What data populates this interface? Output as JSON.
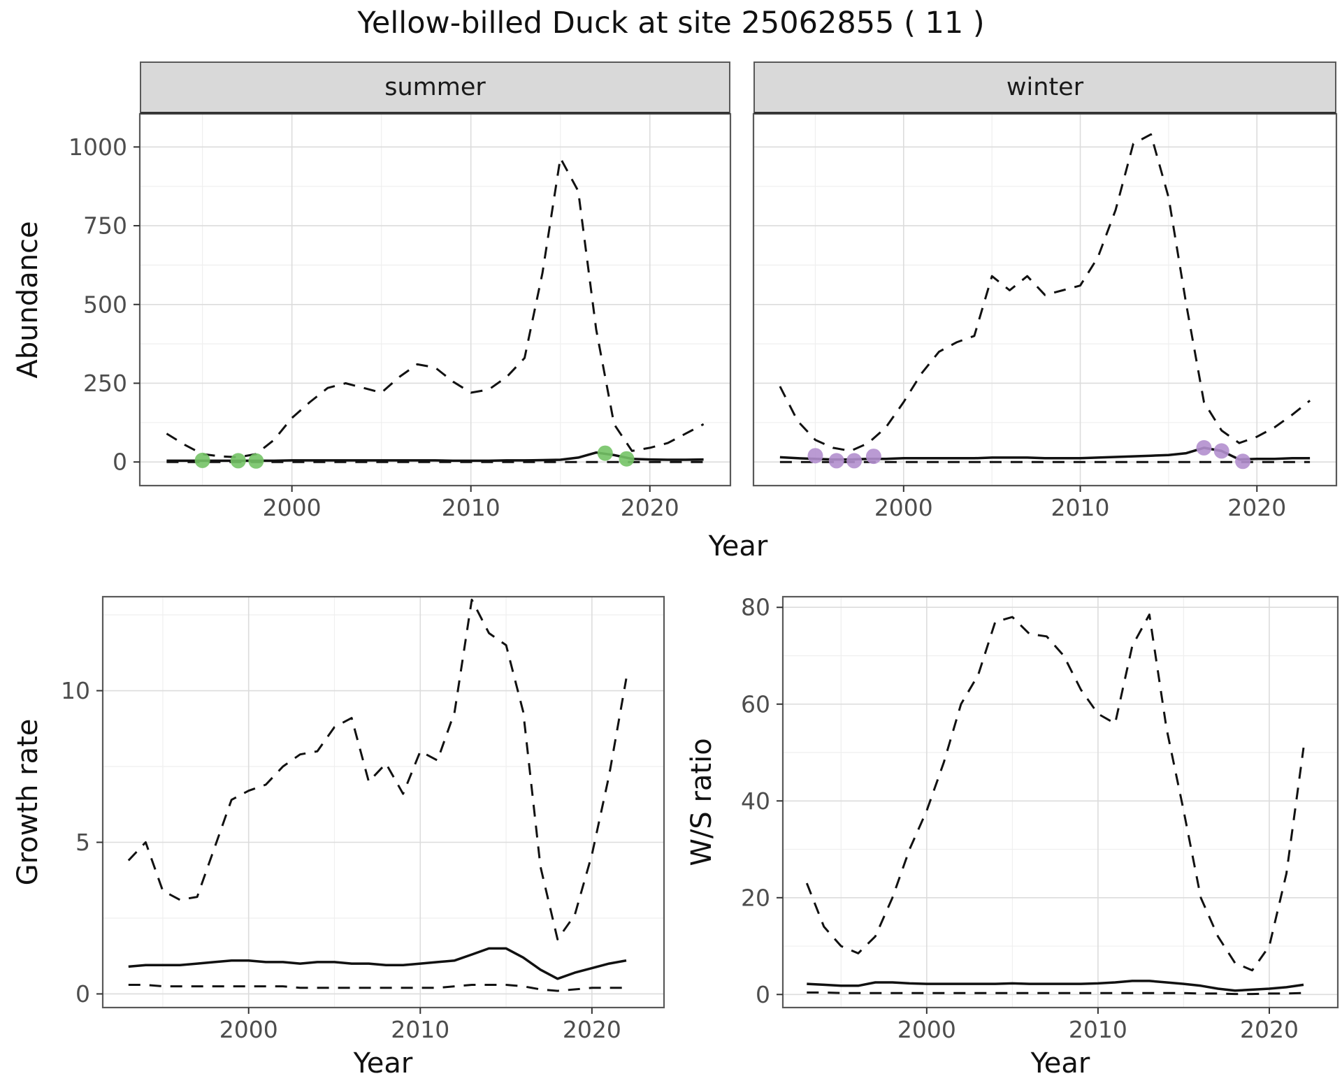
{
  "title": "Yellow-billed Duck at site 25062855 ( 11 )",
  "facets": {
    "summer": "summer",
    "winter": "winter"
  },
  "axis_labels": {
    "abundance": "Abundance",
    "year": "Year",
    "growth": "Growth rate",
    "ws": "W/S ratio"
  },
  "colors": {
    "line": "#111111",
    "grid_major": "#dcdcdc",
    "grid_minor": "#efefef",
    "strip_bg": "#d9d9d9",
    "summer_points": "#74c366",
    "winter_points": "#b28fce"
  },
  "chart_data": [
    {
      "id": "abundance_summer",
      "type": "line",
      "facet": "summer",
      "xlabel": "Year",
      "ylabel": "Abundance",
      "xlim": [
        1991.5,
        2024.5
      ],
      "ylim": [
        -75,
        1105
      ],
      "xticks": [
        2000,
        2010,
        2020
      ],
      "yticks": [
        0,
        250,
        500,
        750,
        1000
      ],
      "x": [
        1993,
        1994,
        1995,
        1996,
        1997,
        1998,
        1999,
        2000,
        2001,
        2002,
        2003,
        2004,
        2005,
        2006,
        2007,
        2008,
        2009,
        2010,
        2011,
        2012,
        2013,
        2014,
        2015,
        2016,
        2017,
        2018,
        2019,
        2020,
        2021,
        2022,
        2023
      ],
      "series": [
        {
          "name": "upper_ci",
          "style": "dashed",
          "values": [
            90,
            55,
            25,
            18,
            15,
            25,
            70,
            140,
            190,
            235,
            250,
            235,
            220,
            270,
            310,
            300,
            255,
            220,
            230,
            270,
            330,
            600,
            965,
            860,
            420,
            120,
            35,
            45,
            60,
            90,
            120
          ]
        },
        {
          "name": "median",
          "style": "solid",
          "values": [
            4,
            4,
            4,
            4,
            4,
            4,
            4,
            5,
            5,
            5,
            5,
            5,
            5,
            5,
            5,
            5,
            4,
            4,
            4,
            5,
            5,
            6,
            7,
            14,
            30,
            22,
            10,
            8,
            7,
            7,
            8
          ]
        },
        {
          "name": "lower_ci",
          "style": "dashed",
          "values": [
            0,
            0,
            0,
            0,
            0,
            0,
            0,
            0,
            0,
            0,
            0,
            0,
            0,
            0,
            0,
            0,
            0,
            0,
            0,
            0,
            0,
            0,
            0,
            0,
            0,
            0,
            0,
            0,
            0,
            0,
            0
          ]
        }
      ],
      "points": {
        "name": "summer-count-point",
        "color": "#74c366",
        "data": [
          [
            1995,
            5
          ],
          [
            1997,
            4
          ],
          [
            1998,
            3
          ],
          [
            2017.5,
            28
          ],
          [
            2018.7,
            10
          ]
        ]
      }
    },
    {
      "id": "abundance_winter",
      "type": "line",
      "facet": "winter",
      "xlabel": "Year",
      "ylabel": "Abundance",
      "xlim": [
        1991.5,
        2024.5
      ],
      "ylim": [
        -75,
        1105
      ],
      "xticks": [
        2000,
        2010,
        2020
      ],
      "yticks": [
        0,
        250,
        500,
        750,
        1000
      ],
      "x": [
        1993,
        1994,
        1995,
        1996,
        1997,
        1998,
        1999,
        2000,
        2001,
        2002,
        2003,
        2004,
        2005,
        2006,
        2007,
        2008,
        2009,
        2010,
        2011,
        2012,
        2013,
        2014,
        2015,
        2016,
        2017,
        2018,
        2019,
        2020,
        2021,
        2022,
        2023
      ],
      "series": [
        {
          "name": "upper_ci",
          "style": "dashed",
          "values": [
            240,
            130,
            70,
            45,
            35,
            60,
            110,
            190,
            280,
            350,
            380,
            400,
            590,
            545,
            590,
            530,
            545,
            560,
            650,
            800,
            1010,
            1040,
            840,
            500,
            190,
            100,
            60,
            80,
            110,
            150,
            195
          ]
        },
        {
          "name": "median",
          "style": "solid",
          "values": [
            15,
            12,
            10,
            8,
            8,
            10,
            10,
            12,
            12,
            12,
            12,
            12,
            14,
            14,
            14,
            12,
            12,
            12,
            14,
            16,
            18,
            20,
            22,
            28,
            45,
            35,
            8,
            10,
            10,
            12,
            12
          ]
        },
        {
          "name": "lower_ci",
          "style": "dashed",
          "values": [
            0,
            0,
            0,
            0,
            0,
            0,
            0,
            0,
            0,
            0,
            0,
            0,
            0,
            0,
            0,
            0,
            0,
            0,
            0,
            0,
            0,
            0,
            0,
            0,
            0,
            0,
            0,
            0,
            0,
            0,
            0
          ]
        }
      ],
      "points": {
        "name": "winter-count-point",
        "color": "#b28fce",
        "data": [
          [
            1995,
            20
          ],
          [
            1996.2,
            4
          ],
          [
            1997.2,
            4
          ],
          [
            1998.3,
            18
          ],
          [
            2017,
            45
          ],
          [
            2018,
            35
          ],
          [
            2019.2,
            2
          ]
        ]
      }
    },
    {
      "id": "growth_rate",
      "type": "line",
      "xlabel": "Year",
      "ylabel": "Growth rate",
      "xlim": [
        1991.5,
        2024.2
      ],
      "ylim": [
        -0.45,
        13.1
      ],
      "xticks": [
        2000,
        2010,
        2020
      ],
      "yticks": [
        0,
        5,
        10
      ],
      "x": [
        1993,
        1994,
        1995,
        1996,
        1997,
        1998,
        1999,
        2000,
        2001,
        2002,
        2003,
        2004,
        2005,
        2006,
        2007,
        2008,
        2009,
        2010,
        2011,
        2012,
        2013,
        2014,
        2015,
        2016,
        2017,
        2018,
        2019,
        2020,
        2021,
        2022
      ],
      "series": [
        {
          "name": "upper_ci",
          "style": "dashed",
          "values": [
            4.4,
            5.0,
            3.4,
            3.1,
            3.2,
            4.8,
            6.4,
            6.7,
            6.9,
            7.5,
            7.9,
            8.0,
            8.8,
            9.1,
            7.0,
            7.6,
            6.6,
            8.0,
            7.7,
            9.3,
            13.0,
            11.9,
            11.5,
            9.3,
            4.2,
            1.8,
            2.6,
            4.6,
            7.2,
            10.4
          ]
        },
        {
          "name": "median",
          "style": "solid",
          "values": [
            0.9,
            0.95,
            0.95,
            0.95,
            1.0,
            1.05,
            1.1,
            1.1,
            1.05,
            1.05,
            1.0,
            1.05,
            1.05,
            1.0,
            1.0,
            0.95,
            0.95,
            1.0,
            1.05,
            1.1,
            1.3,
            1.5,
            1.5,
            1.2,
            0.8,
            0.5,
            0.7,
            0.85,
            1.0,
            1.1
          ]
        },
        {
          "name": "lower_ci",
          "style": "dashed",
          "values": [
            0.3,
            0.3,
            0.25,
            0.25,
            0.25,
            0.25,
            0.25,
            0.25,
            0.25,
            0.25,
            0.2,
            0.2,
            0.2,
            0.2,
            0.2,
            0.2,
            0.2,
            0.2,
            0.2,
            0.25,
            0.3,
            0.3,
            0.3,
            0.25,
            0.15,
            0.1,
            0.15,
            0.2,
            0.2,
            0.2
          ]
        }
      ]
    },
    {
      "id": "ws_ratio",
      "type": "line",
      "xlabel": "Year",
      "ylabel": "W/S ratio",
      "xlim": [
        1991.6,
        2024.0
      ],
      "ylim": [
        -2.7,
        82.2
      ],
      "xticks": [
        2000,
        2010,
        2020
      ],
      "yticks": [
        0,
        20,
        40,
        60,
        80
      ],
      "x": [
        1993,
        1994,
        1995,
        1996,
        1997,
        1998,
        1999,
        2000,
        2001,
        2002,
        2003,
        2004,
        2005,
        2006,
        2007,
        2008,
        2009,
        2010,
        2011,
        2012,
        2013,
        2014,
        2015,
        2016,
        2017,
        2018,
        2019,
        2020,
        2021,
        2022
      ],
      "series": [
        {
          "name": "upper_ci",
          "style": "dashed",
          "values": [
            23,
            14,
            10,
            8.5,
            12,
            20,
            30,
            38,
            48,
            60,
            66,
            77,
            78,
            74.5,
            74,
            70,
            63,
            58,
            56,
            72,
            78.5,
            55,
            38,
            20,
            12,
            6.5,
            5,
            10,
            25,
            51
          ]
        },
        {
          "name": "median",
          "style": "solid",
          "values": [
            2.2,
            2.0,
            1.8,
            1.8,
            2.5,
            2.5,
            2.3,
            2.2,
            2.2,
            2.2,
            2.2,
            2.2,
            2.3,
            2.2,
            2.2,
            2.2,
            2.2,
            2.3,
            2.5,
            2.8,
            2.8,
            2.5,
            2.2,
            1.8,
            1.2,
            0.8,
            1.0,
            1.2,
            1.5,
            2.0
          ]
        },
        {
          "name": "lower_ci",
          "style": "dashed",
          "values": [
            0.4,
            0.4,
            0.3,
            0.3,
            0.3,
            0.3,
            0.3,
            0.3,
            0.3,
            0.3,
            0.3,
            0.3,
            0.3,
            0.3,
            0.3,
            0.3,
            0.3,
            0.3,
            0.3,
            0.3,
            0.3,
            0.3,
            0.3,
            0.2,
            0.2,
            0.1,
            0.1,
            0.2,
            0.2,
            0.3
          ]
        }
      ]
    }
  ]
}
